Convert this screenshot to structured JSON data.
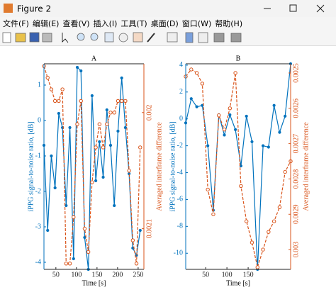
{
  "window": {
    "title": "Figure 2",
    "menu": [
      "文件(F)",
      "编辑(E)",
      "查看(V)",
      "插入(I)",
      "工具(T)",
      "桌面(D)",
      "窗口(W)",
      "帮助(H)"
    ]
  },
  "chart_data": [
    {
      "type": "line",
      "title": "A",
      "x_label": "Time [s]",
      "y_label": "iPPG signal-to-noise ratio, [dB]",
      "y2_label": "Averaged interframe difference",
      "x": [
        21,
        30,
        39,
        48,
        57,
        66,
        75,
        84,
        93,
        102,
        111,
        120,
        129,
        138,
        147,
        156,
        165,
        174,
        183,
        192,
        201,
        210,
        219,
        228,
        237,
        246,
        255
      ],
      "xlim": [
        21,
        264
      ],
      "xticks": [
        50,
        100,
        150,
        200,
        250
      ],
      "ylim": [
        -4.2,
        1.6
      ],
      "yticks": [
        -4,
        -3,
        -2,
        -1,
        0,
        1
      ],
      "y2lim": [
        0.001958,
        0.002135
      ],
      "y2ticks": [
        0.002,
        0.0021
      ],
      "y2reverse": true,
      "series": [
        {
          "color": "#0072BD",
          "marker": "dot",
          "dash": false,
          "values": [
            -0.7,
            -3.1,
            -1.0,
            -1.9,
            0.2,
            -0.2,
            -2.4,
            -0.2,
            -3.9,
            1.5,
            1.4,
            -3.3,
            -4.2,
            0.7,
            -1.7,
            -0.6,
            -1.6,
            0.3,
            -0.7,
            -2.4,
            -0.3,
            1.2,
            -0.2,
            -1.5,
            -3.6,
            -3.8,
            -3.1
          ]
        },
        {
          "color": "#D95319",
          "marker": "circle",
          "dash": true,
          "axis": "y2",
          "values": [
            0.00196,
            0.00197,
            0.00198,
            0.00199,
            0.00199,
            0.00198,
            0.00213,
            0.00213,
            0.00209,
            0.00201,
            0.00199,
            0.0021,
            0.00212,
            0.00206,
            0.00203,
            0.00201,
            0.00203,
            0.00201,
            0.002,
            0.002,
            0.00199,
            0.00199,
            0.00199,
            0.00205,
            0.00211,
            0.00213,
            0.00203
          ]
        }
      ]
    },
    {
      "type": "line",
      "title": "B",
      "x_label": "Time [s]",
      "y_label": "iPPG signal-to-noise ratio, [dB]",
      "y2_label": "Averaged interframe difference",
      "x": [
        3,
        16,
        29,
        42,
        55,
        68,
        81,
        94,
        107,
        120,
        133,
        146,
        159,
        172,
        185,
        198,
        211,
        224,
        237,
        250
      ],
      "xlim": [
        3,
        250
      ],
      "xticks": [
        50,
        100,
        150
      ],
      "ylim": [
        -11.2,
        4.1
      ],
      "yticks": [
        -10,
        -8,
        -6,
        -4,
        -2,
        0,
        2,
        4
      ],
      "y2lim": [
        0.002474,
        0.003056
      ],
      "y2ticks": [
        0.0025,
        0.0026,
        0.0027,
        0.0028,
        0.0029,
        0.003
      ],
      "y2reverse": true,
      "series": [
        {
          "color": "#0072BD",
          "marker": "dot",
          "dash": false,
          "values": [
            -0.3,
            1.5,
            0.9,
            1.0,
            -2.0,
            -6.8,
            0.3,
            -1.2,
            0.3,
            -0.8,
            -3.5,
            0.2,
            -1.7,
            -11.2,
            -2.0,
            -2.1,
            1.0,
            -1.0,
            0.2,
            4.1
          ]
        },
        {
          "color": "#D95319",
          "marker": "circle",
          "dash": true,
          "axis": "y2",
          "values": [
            0.00251,
            0.00249,
            0.0025,
            0.00253,
            0.00283,
            0.0029,
            0.00262,
            0.00266,
            0.0026,
            0.0025,
            0.00282,
            0.00292,
            0.00298,
            0.00305,
            0.003,
            0.00295,
            0.00292,
            0.00288,
            0.00278,
            0.00275
          ]
        }
      ]
    }
  ]
}
